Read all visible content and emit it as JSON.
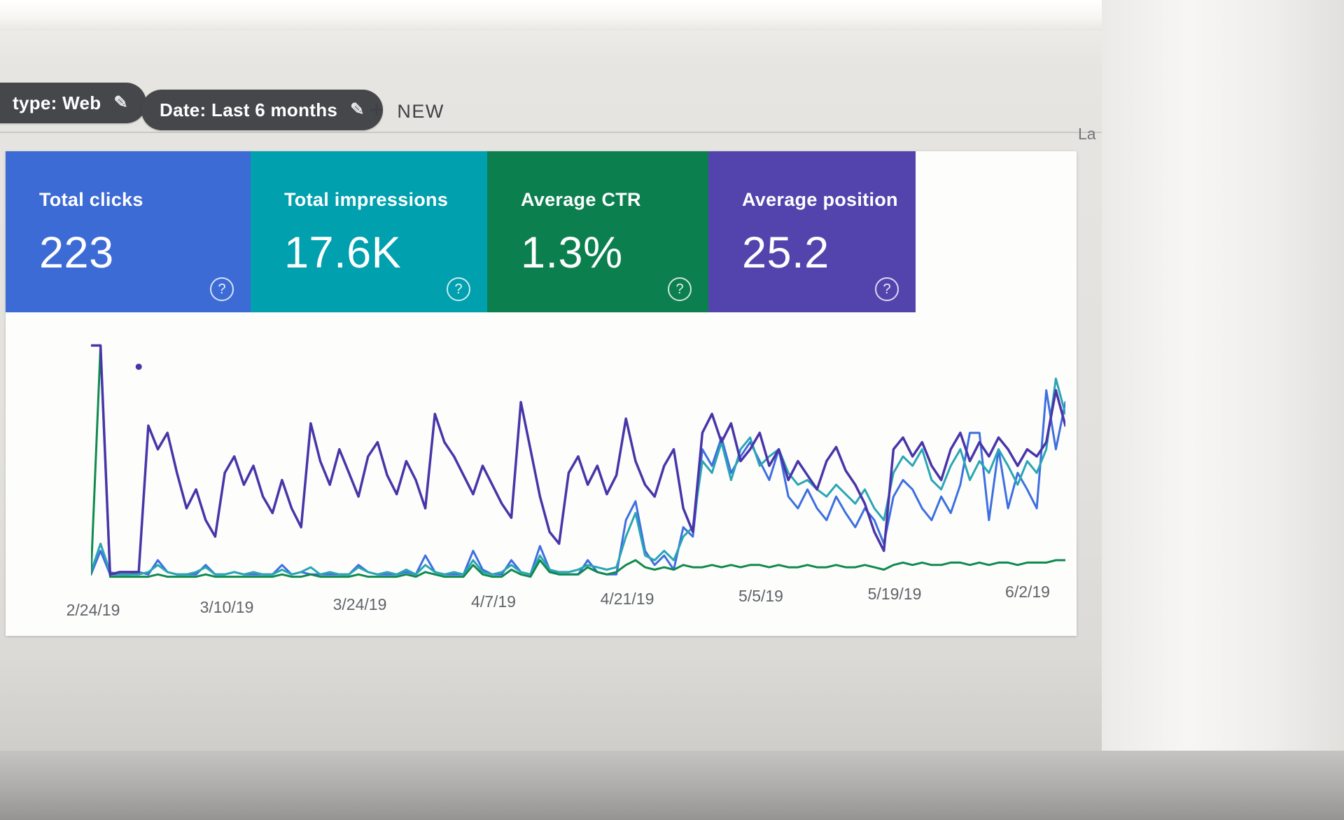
{
  "filters": {
    "type_chip": "type: Web",
    "date_chip": "Date: Last 6 months",
    "new_label": "NEW"
  },
  "icons": {
    "pencil": "✎",
    "plus": "+",
    "help": "?"
  },
  "top_right_partial_text": "La",
  "cards": [
    {
      "label": "Total clicks",
      "value": "223",
      "color": "#3d6bd5"
    },
    {
      "label": "Total impressions",
      "value": "17.6K",
      "color": "#00a0ae"
    },
    {
      "label": "Average CTR",
      "value": "1.3%",
      "color": "#0c7f4f"
    },
    {
      "label": "Average position",
      "value": "25.2",
      "color": "#5344ad"
    }
  ],
  "chart_data": {
    "type": "line",
    "title": "",
    "xlabel": "",
    "ylabel": "",
    "grid": "off",
    "legend_position": "none",
    "y_axis_note": "no y-axis labels visible in screenshot; series values are relative line heights 0-100 (% of plot height)",
    "days_total": 103,
    "x_tick_labels": [
      "2/24/19",
      "3/10/19",
      "3/24/19",
      "4/7/19",
      "4/21/19",
      "5/5/19",
      "5/19/19",
      "6/2/19"
    ],
    "x_tick_day_indices": [
      0,
      14,
      28,
      42,
      56,
      70,
      84,
      98
    ],
    "series": [
      {
        "name": "Clicks",
        "color": "#3d6fe0",
        "values": [
          2,
          12,
          2,
          2,
          2,
          3,
          2,
          8,
          3,
          2,
          2,
          2,
          6,
          2,
          2,
          3,
          2,
          2,
          2,
          2,
          6,
          2,
          3,
          2,
          2,
          2,
          2,
          2,
          6,
          3,
          2,
          2,
          2,
          3,
          2,
          10,
          3,
          2,
          2,
          2,
          12,
          4,
          2,
          2,
          8,
          3,
          2,
          14,
          4,
          2,
          2,
          2,
          8,
          3,
          2,
          2,
          25,
          33,
          12,
          6,
          10,
          4,
          22,
          18,
          55,
          48,
          60,
          45,
          52,
          58,
          50,
          42,
          55,
          35,
          30,
          38,
          30,
          25,
          35,
          28,
          22,
          30,
          25,
          15,
          35,
          42,
          38,
          30,
          25,
          35,
          28,
          40,
          62,
          62,
          25,
          55,
          30,
          45,
          38,
          30,
          80,
          55,
          75
        ]
      },
      {
        "name": "Impressions",
        "color": "#2aa5b4",
        "values": [
          3,
          15,
          3,
          2,
          2,
          2,
          3,
          6,
          3,
          2,
          2,
          3,
          5,
          2,
          2,
          3,
          2,
          3,
          2,
          2,
          4,
          2,
          3,
          5,
          2,
          3,
          2,
          2,
          5,
          3,
          2,
          3,
          2,
          4,
          2,
          6,
          3,
          2,
          3,
          2,
          8,
          3,
          2,
          3,
          6,
          3,
          2,
          10,
          4,
          3,
          3,
          4,
          6,
          5,
          4,
          5,
          18,
          28,
          10,
          8,
          12,
          8,
          18,
          22,
          50,
          45,
          58,
          42,
          55,
          60,
          48,
          52,
          55,
          45,
          40,
          42,
          38,
          35,
          40,
          36,
          32,
          38,
          30,
          25,
          45,
          52,
          48,
          55,
          42,
          38,
          48,
          55,
          42,
          50,
          45,
          55,
          48,
          40,
          50,
          45,
          55,
          85,
          70
        ]
      },
      {
        "name": "CTR",
        "color": "#0f8a4e",
        "values": [
          2,
          99,
          1,
          1,
          1,
          1,
          1,
          2,
          1,
          1,
          1,
          1,
          2,
          1,
          1,
          1,
          1,
          1,
          1,
          1,
          2,
          1,
          1,
          2,
          1,
          1,
          1,
          1,
          2,
          1,
          1,
          1,
          1,
          2,
          1,
          3,
          2,
          1,
          1,
          1,
          6,
          2,
          1,
          1,
          4,
          2,
          1,
          8,
          3,
          2,
          2,
          2,
          5,
          3,
          2,
          3,
          6,
          8,
          5,
          4,
          5,
          4,
          6,
          5,
          5,
          6,
          5,
          6,
          5,
          6,
          6,
          5,
          6,
          5,
          5,
          6,
          5,
          5,
          6,
          5,
          5,
          6,
          5,
          4,
          6,
          7,
          6,
          7,
          6,
          6,
          7,
          7,
          6,
          7,
          6,
          7,
          7,
          6,
          7,
          7,
          7,
          8,
          8
        ]
      },
      {
        "name": "Position",
        "color": "#4935a8",
        "values": [
          99,
          99,
          2,
          3,
          3,
          3,
          65,
          55,
          62,
          45,
          30,
          38,
          25,
          18,
          45,
          52,
          40,
          48,
          35,
          28,
          42,
          30,
          22,
          66,
          50,
          40,
          55,
          45,
          35,
          52,
          58,
          44,
          36,
          50,
          42,
          30,
          70,
          58,
          52,
          44,
          36,
          48,
          40,
          32,
          26,
          75,
          55,
          35,
          20,
          15,
          45,
          52,
          40,
          48,
          36,
          44,
          68,
          50,
          40,
          35,
          48,
          55,
          30,
          20,
          62,
          70,
          58,
          66,
          50,
          55,
          62,
          48,
          55,
          42,
          50,
          44,
          38,
          50,
          56,
          46,
          40,
          32,
          20,
          12,
          55,
          60,
          52,
          58,
          48,
          42,
          55,
          62,
          50,
          58,
          52,
          60,
          55,
          48,
          55,
          52,
          58,
          80,
          65
        ]
      }
    ],
    "detached_dot": {
      "series": "Position",
      "day_index": 5,
      "value": 90,
      "color": "#4935a8"
    }
  }
}
